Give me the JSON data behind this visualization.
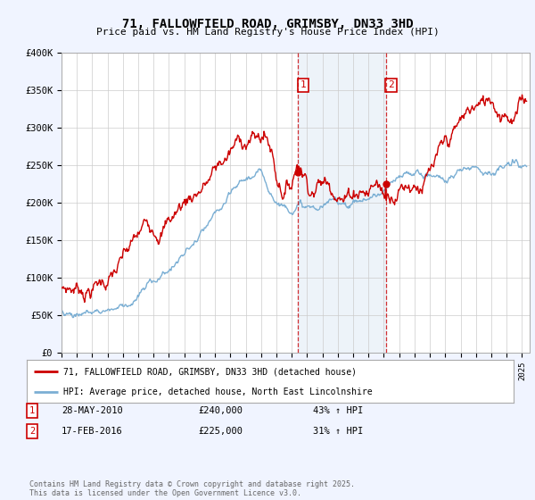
{
  "title": "71, FALLOWFIELD ROAD, GRIMSBY, DN33 3HD",
  "subtitle": "Price paid vs. HM Land Registry's House Price Index (HPI)",
  "ylabel_ticks": [
    "£0",
    "£50K",
    "£100K",
    "£150K",
    "£200K",
    "£250K",
    "£300K",
    "£350K",
    "£400K"
  ],
  "ylim": [
    0,
    400000
  ],
  "xlim_start": 1995.0,
  "xlim_end": 2025.5,
  "sale1_date": 2010.41,
  "sale1_price": 240000,
  "sale2_date": 2016.12,
  "sale2_price": 225000,
  "legend_line1": "71, FALLOWFIELD ROAD, GRIMSBY, DN33 3HD (detached house)",
  "legend_line2": "HPI: Average price, detached house, North East Lincolnshire",
  "sale1_text": "28-MAY-2010",
  "sale1_amount": "£240,000",
  "sale1_hpi": "43% ↑ HPI",
  "sale2_text": "17-FEB-2016",
  "sale2_amount": "£225,000",
  "sale2_hpi": "31% ↑ HPI",
  "copyright": "Contains HM Land Registry data © Crown copyright and database right 2025.\nThis data is licensed under the Open Government Licence v3.0.",
  "red_color": "#cc0000",
  "blue_color": "#7bafd4",
  "vline_color": "#cc0000",
  "background_color": "#f0f4ff",
  "plot_bg_color": "#ffffff",
  "grid_color": "#cccccc",
  "shade_color": "#dce8f5"
}
